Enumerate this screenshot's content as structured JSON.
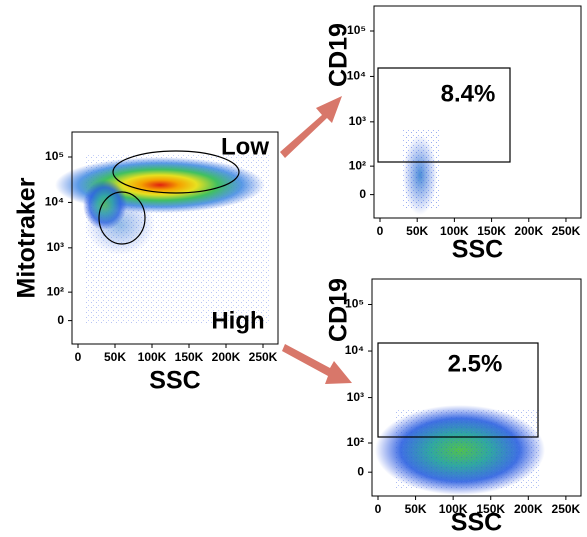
{
  "chart_data": [
    {
      "type": "scatter",
      "xlabel": "SSC",
      "ylabel": "Mitotraker",
      "yscale": "logicle",
      "xlim": [
        0,
        262144
      ],
      "ylim": [
        -50,
        262144
      ],
      "xticks": [
        0,
        {
          "value": 50000,
          "label": "50K"
        },
        {
          "value": 100000,
          "label": "100K"
        },
        {
          "value": 150000,
          "label": "150K"
        },
        {
          "value": 200000,
          "label": "200K"
        },
        {
          "value": 250000,
          "label": "250K"
        }
      ],
      "yticks": [
        0,
        {
          "value": 100,
          "label": "10²"
        },
        {
          "value": 1000,
          "label": "10³"
        },
        {
          "value": 10000,
          "label": "10⁴"
        },
        {
          "value": 100000,
          "label": "10⁵"
        }
      ],
      "annotations": [
        "Low",
        "High"
      ]
    },
    {
      "type": "scatter",
      "xlabel": "SSC",
      "ylabel": "CD19",
      "yscale": "logicle",
      "xlim": [
        0,
        262144
      ],
      "ylim": [
        -50,
        262144
      ],
      "xticks": [
        0,
        {
          "value": 50000,
          "label": "50K"
        },
        {
          "value": 100000,
          "label": "100K"
        },
        {
          "value": 150000,
          "label": "150K"
        },
        {
          "value": 200000,
          "label": "200K"
        },
        {
          "value": 250000,
          "label": "250K"
        }
      ],
      "yticks": [
        0,
        {
          "value": 100,
          "label": "10²"
        },
        {
          "value": 1000,
          "label": "10³"
        },
        {
          "value": 10000,
          "label": "10⁴"
        },
        {
          "value": 100000,
          "label": "10⁵"
        }
      ],
      "annotations": [
        "8.4%"
      ]
    },
    {
      "type": "scatter",
      "xlabel": "SSC",
      "ylabel": "CD19",
      "yscale": "logicle",
      "xlim": [
        0,
        262144
      ],
      "ylim": [
        -50,
        262144
      ],
      "xticks": [
        0,
        {
          "value": 50000,
          "label": "50K"
        },
        {
          "value": 100000,
          "label": "100K"
        },
        {
          "value": 150000,
          "label": "150K"
        },
        {
          "value": 200000,
          "label": "200K"
        },
        {
          "value": 250000,
          "label": "250K"
        }
      ],
      "yticks": [
        0,
        {
          "value": 100,
          "label": "10²"
        },
        {
          "value": 1000,
          "label": "10³"
        },
        {
          "value": 10000,
          "label": "10⁴"
        },
        {
          "value": 100000,
          "label": "10⁵"
        }
      ],
      "annotations": [
        "2.5%"
      ]
    }
  ]
}
